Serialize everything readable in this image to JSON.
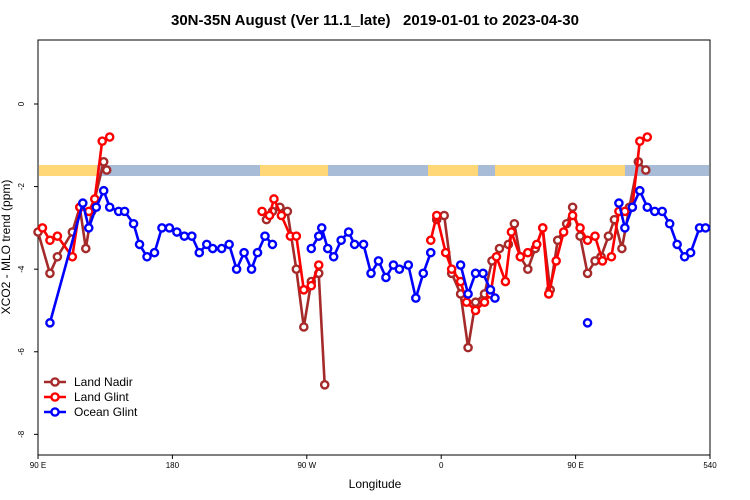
{
  "chart_data": {
    "type": "line",
    "title": "30N-35N August (Ver 11.1_late)   2019-01-01 to 2023-04-30",
    "xlabel": "Longitude",
    "ylabel": "XCO2 - MLO trend (ppm)",
    "xlim": [
      90,
      540
    ],
    "ylim": [
      -8.5,
      1.55
    ],
    "xticks": [
      {
        "value": 90,
        "label": "90 E"
      },
      180,
      {
        "value": 270,
        "label": "90 W"
      },
      0,
      {
        "value": 450,
        "label": "90 E"
      },
      540
    ],
    "yticks": [
      0,
      -2,
      -4,
      -6,
      -8
    ],
    "legend": "lower left",
    "series": [
      {
        "name": "Land Nadir",
        "color": "#a52a2a",
        "x": [
          90,
          98,
          103,
          113,
          118,
          122,
          126,
          134,
          136,
          null,
          243,
          247,
          252,
          257,
          263,
          268,
          273,
          278,
          282,
          null,
          357,
          362,
          367,
          373,
          378,
          383,
          389,
          394,
          399,
          405,
          409,
          413,
          418,
          423,
          428,
          433,
          438,
          444,
          448,
          453,
          458,
          463,
          467,
          472,
          476,
          481,
          486,
          492,
          497
        ],
        "values": [
          -3.1,
          -4.1,
          -3.7,
          -3.1,
          -2.5,
          -3.5,
          -2.6,
          -1.4,
          -1.6,
          null,
          -2.8,
          -2.6,
          -2.5,
          -2.6,
          -4.0,
          -5.4,
          -4.3,
          -4.1,
          -6.8,
          null,
          -2.8,
          -2.7,
          -4.1,
          -4.6,
          -5.9,
          -4.8,
          -4.6,
          -3.8,
          -3.5,
          -3.4,
          -2.9,
          -3.7,
          -4.0,
          -3.5,
          -3.0,
          -4.5,
          -3.3,
          -2.9,
          -2.5,
          -3.2,
          -4.1,
          -3.8,
          -3.7,
          -3.2,
          -2.8,
          -3.5,
          -2.5,
          -1.4,
          -1.6
        ]
      },
      {
        "name": "Land Glint",
        "color": "#ff0000",
        "x": [
          93,
          98,
          103,
          113,
          118,
          124,
          128,
          133,
          138,
          null,
          240,
          245,
          248,
          253,
          259,
          263,
          268,
          273,
          278,
          null,
          353,
          357,
          363,
          367,
          373,
          377,
          383,
          389,
          393,
          397,
          403,
          407,
          413,
          418,
          424,
          428,
          432,
          437,
          442,
          448,
          453,
          458,
          463,
          468,
          474,
          479,
          483,
          488,
          493,
          498
        ],
        "values": [
          -3.0,
          -3.3,
          -3.2,
          -3.7,
          -2.5,
          -2.6,
          -2.3,
          -0.9,
          -0.8,
          null,
          -2.6,
          -2.7,
          -2.3,
          -2.7,
          -3.2,
          -3.2,
          -4.5,
          -4.4,
          -3.9,
          null,
          -3.3,
          -2.7,
          -3.6,
          -4.0,
          -4.3,
          -4.8,
          -5.0,
          -4.8,
          -4.6,
          -3.7,
          -4.3,
          -3.1,
          -3.7,
          -3.6,
          -3.4,
          -3.0,
          -4.6,
          -3.8,
          -3.1,
          -2.7,
          -3.0,
          -3.3,
          -3.2,
          -3.8,
          -3.7,
          -2.6,
          -2.6,
          -2.5,
          -0.9,
          -0.8
        ]
      },
      {
        "name": "Ocean Glint",
        "color": "#0000ff",
        "x": [
          98,
          120,
          124,
          129,
          134,
          138,
          144,
          148,
          154,
          158,
          163,
          168,
          173,
          178,
          183,
          188,
          193,
          198,
          203,
          207,
          213,
          218,
          223,
          228,
          233,
          237,
          242,
          247,
          null,
          273,
          278,
          280,
          284,
          288,
          293,
          298,
          302,
          308,
          313,
          318,
          323,
          328,
          332,
          338,
          343,
          348,
          353,
          null,
          373,
          378,
          383,
          388,
          393,
          396,
          null,
          458,
          null,
          479,
          483,
          488,
          493,
          498,
          503,
          508,
          513,
          518,
          523,
          527,
          533,
          537
        ],
        "values": [
          -5.3,
          -2.4,
          -3.0,
          -2.5,
          -2.1,
          -2.5,
          -2.6,
          -2.6,
          -2.9,
          -3.4,
          -3.7,
          -3.6,
          -3.0,
          -3.0,
          -3.1,
          -3.2,
          -3.2,
          -3.6,
          -3.4,
          -3.5,
          -3.5,
          -3.4,
          -4.0,
          -3.6,
          -4.0,
          -3.6,
          -3.2,
          -3.4,
          null,
          -3.5,
          -3.2,
          -3.0,
          -3.5,
          -3.7,
          -3.3,
          -3.1,
          -3.4,
          -3.4,
          -4.1,
          -3.8,
          -4.2,
          -3.9,
          -4.0,
          -3.9,
          -4.7,
          -4.1,
          -3.6,
          null,
          -3.9,
          -4.6,
          -4.1,
          -4.1,
          -4.5,
          -4.7,
          null,
          -5.3,
          null,
          -2.4,
          -3.0,
          -2.5,
          -2.1,
          -2.5,
          -2.6,
          -2.6,
          -2.9,
          -3.4,
          -3.7,
          -3.6,
          -3.0,
          -3.0
        ]
      }
    ]
  }
}
